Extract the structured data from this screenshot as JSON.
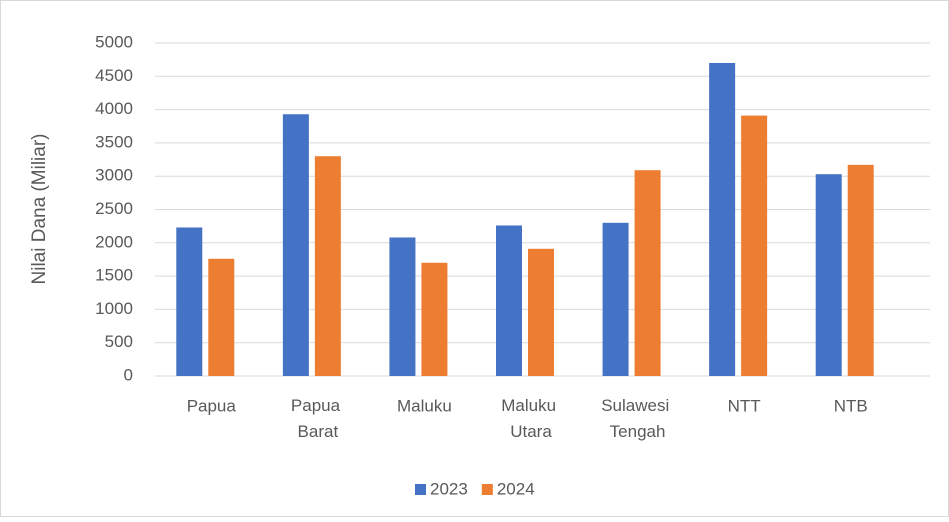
{
  "chart_data": {
    "type": "bar",
    "y_label": "Nilai Dana (Miliar)",
    "categories": [
      "Papua",
      "Papua Barat",
      "Maluku",
      "Maluku Utara",
      "Sulawesi Tengah",
      "NTT",
      "NTB"
    ],
    "series": [
      {
        "name": "2023",
        "color": "#4472c4",
        "values": [
          2230,
          3930,
          2080,
          2260,
          2300,
          4700,
          3030
        ]
      },
      {
        "name": "2024",
        "color": "#ed7d31",
        "values": [
          1760,
          3300,
          1700,
          1910,
          3090,
          3910,
          3170
        ]
      }
    ],
    "ylim": [
      0,
      5000
    ],
    "yticks": [
      0,
      500,
      1000,
      1500,
      2000,
      2500,
      3000,
      3500,
      4000,
      4500,
      5000
    ],
    "grid": true,
    "legend": "bottom"
  }
}
